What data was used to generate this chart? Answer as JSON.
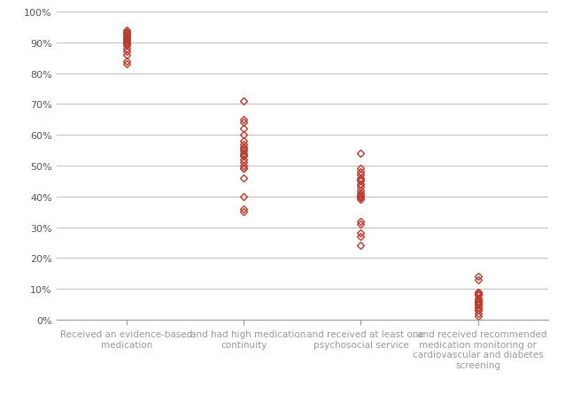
{
  "groups": [
    {
      "x": 1,
      "label": "Received an evidence-based\nmedication",
      "values": [
        0.83,
        0.84,
        0.86,
        0.87,
        0.88,
        0.89,
        0.895,
        0.9,
        0.905,
        0.91,
        0.91,
        0.915,
        0.92,
        0.92,
        0.925,
        0.93,
        0.93,
        0.935,
        0.94,
        0.91,
        0.9,
        0.89
      ]
    },
    {
      "x": 2,
      "label": "...and had high medication\ncontinuity",
      "values": [
        0.35,
        0.36,
        0.46,
        0.49,
        0.49,
        0.51,
        0.53,
        0.535,
        0.54,
        0.55,
        0.555,
        0.56,
        0.57,
        0.58,
        0.6,
        0.62,
        0.64,
        0.65,
        0.71,
        0.4,
        0.5,
        0.52
      ]
    },
    {
      "x": 3,
      "label": "...and received at least one\npsychosocial service",
      "values": [
        0.24,
        0.27,
        0.28,
        0.31,
        0.32,
        0.39,
        0.395,
        0.4,
        0.405,
        0.41,
        0.43,
        0.44,
        0.44,
        0.45,
        0.455,
        0.46,
        0.47,
        0.48,
        0.49,
        0.54,
        0.4,
        0.42
      ]
    },
    {
      "x": 4,
      "label": "...and received recommended\nmedication monitoring or\ncardiovascular and diabetes\nscreening",
      "values": [
        0.01,
        0.02,
        0.03,
        0.03,
        0.04,
        0.05,
        0.05,
        0.055,
        0.06,
        0.06,
        0.07,
        0.08,
        0.085,
        0.09,
        0.13,
        0.14,
        0.03,
        0.04,
        0.06,
        0.07,
        0.08,
        0.09
      ]
    }
  ],
  "marker_edge_color": "#c0392b",
  "marker_face_color": "none",
  "marker": "D",
  "marker_size": 4,
  "marker_edge_width": 1.0,
  "ylim": [
    0,
    1.0
  ],
  "yticks": [
    0.0,
    0.1,
    0.2,
    0.3,
    0.4,
    0.5,
    0.6,
    0.7,
    0.8,
    0.9,
    1.0
  ],
  "xlim": [
    0.4,
    4.6
  ],
  "grid_color": "#bbbbbb",
  "background_color": "#ffffff",
  "spine_color": "#999999",
  "tick_label_color": "#555555",
  "xlabel_fontsize": 7.5,
  "ylabel_fontsize": 8,
  "fig_width": 6.38,
  "fig_height": 4.64,
  "dpi": 100
}
